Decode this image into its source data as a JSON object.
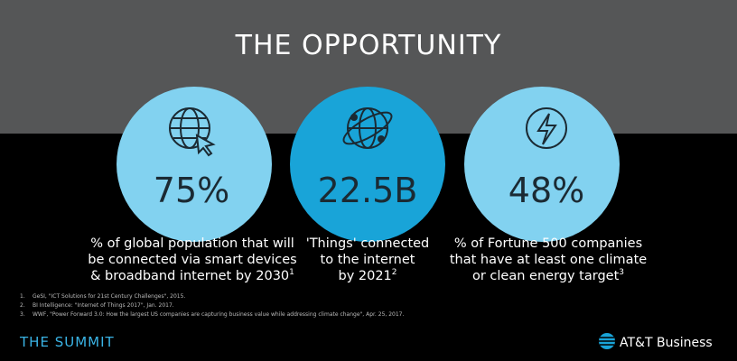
{
  "header": {
    "title": "THE OPPORTUNITY"
  },
  "stats": [
    {
      "value": "75%",
      "lines": [
        "% of global population that will",
        "be connected via smart devices",
        "& broadband internet by 2030"
      ],
      "note": "1"
    },
    {
      "value": "22.5B",
      "lines": [
        "'Things' connected",
        "to the internet",
        "by 2021"
      ],
      "note": "2"
    },
    {
      "value": "48%",
      "lines": [
        "% of Fortune 500 companies",
        "that have at least one climate",
        "or clean energy target"
      ],
      "note": "3"
    }
  ],
  "footnotes": [
    {
      "number": "1.",
      "text": "GeSI, \"ICT Solutions for 21st Century Challenges\", 2015."
    },
    {
      "number": "2.",
      "text": "BI Intelligence: \"Internet of Things 2017\", Jan. 2017."
    },
    {
      "number": "3.",
      "text": "WWF, \"Power Forward 3.0: How the largest US companies are capturing business value while addressing climate change\", Apr. 25, 2017."
    }
  ],
  "footer": {
    "brand": "THE SUMMIT",
    "logo": "AT&T Business"
  }
}
